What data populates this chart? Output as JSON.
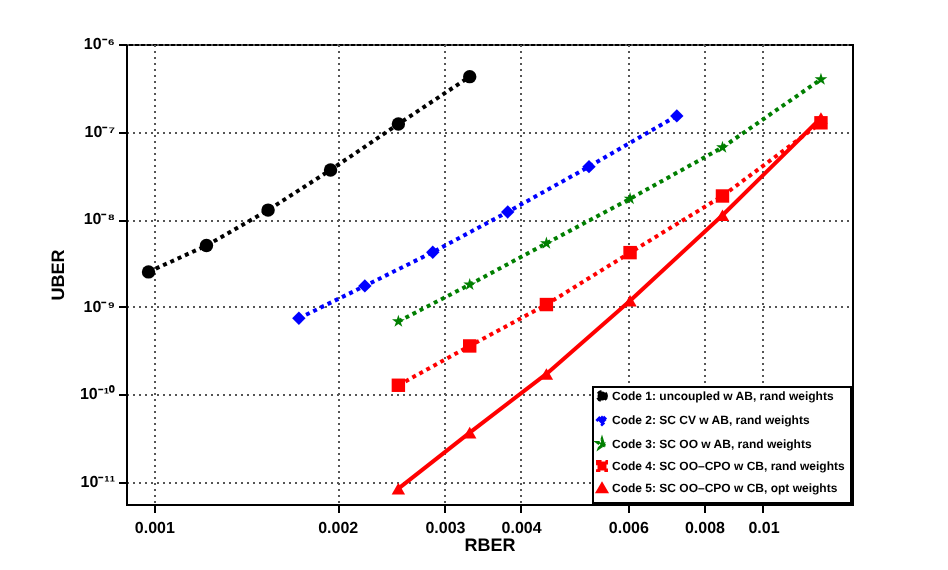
{
  "chart_data": {
    "type": "line",
    "xlabel": "RBER",
    "ylabel": "UBER",
    "log": "xy",
    "grid": true,
    "legend": "bottom right",
    "xlim": [
      0.0009,
      0.014
    ],
    "xticks": [
      0.001,
      0.002,
      0.003,
      0.004,
      0.006,
      0.008,
      0.01
    ],
    "ylim": [
      5.6e-12,
      1e-06
    ],
    "yticks": [
      {
        "value": 1e-11,
        "label": "10⁻¹¹"
      },
      {
        "value": 1e-10,
        "label": "10⁻¹⁰"
      },
      {
        "value": 1e-09,
        "label": "10⁻⁹"
      },
      {
        "value": 1e-08,
        "label": "10⁻⁸"
      },
      {
        "value": 1e-07,
        "label": "10⁻⁷"
      },
      {
        "value": 1e-06,
        "label": "10⁻⁶"
      }
    ],
    "series": [
      {
        "name": "Code 1: uncoupled w AB, rand weights",
        "color": "#000000",
        "marker": "circle",
        "line_style": "dotted",
        "x": [
          0.00098,
          0.00122,
          0.00154,
          0.00195,
          0.00252,
          0.0033
        ],
        "values": [
          2.5e-09,
          5e-09,
          1.27e-08,
          3.65e-08,
          1.22e-07,
          4.24e-07
        ]
      },
      {
        "name": "Code 2: SC CV w AB, rand weights",
        "color": "#0000ff",
        "marker": "diamond",
        "line_style": "dotted",
        "x": [
          0.00173,
          0.00222,
          0.00287,
          0.00381,
          0.00518,
          0.00722
        ],
        "values": [
          7.4e-10,
          1.73e-09,
          4.2e-09,
          1.21e-08,
          3.98e-08,
          1.51e-07
        ]
      },
      {
        "name": "Code 3: SC OO w AB, rand weights",
        "color": "#007f00",
        "marker": "star",
        "line_style": "dotted",
        "x": [
          0.00252,
          0.0033,
          0.00441,
          0.00605,
          0.00858,
          0.01245
        ],
        "values": [
          6.8e-10,
          1.79e-09,
          5.3e-09,
          1.71e-08,
          6.6e-08,
          3.95e-07
        ]
      },
      {
        "name": "Code 4: SC OO–CPO w CB, rand weights",
        "color": "#ff0000",
        "marker": "square",
        "line_style": "dotted",
        "x": [
          0.00252,
          0.0033,
          0.00441,
          0.00605,
          0.00858,
          0.01245
        ],
        "values": [
          1.27e-10,
          3.57e-10,
          1.06e-09,
          4.15e-09,
          1.84e-08,
          1.26e-07
        ]
      },
      {
        "name": "Code 5: SC OO–CPO w CB, opt weights",
        "color": "#ff0000",
        "marker": "triangle",
        "line_style": "solid",
        "x": [
          0.00252,
          0.0033,
          0.00441,
          0.00605,
          0.00858,
          0.01245
        ],
        "values": [
          8.4e-12,
          3.66e-11,
          1.71e-10,
          1.17e-09,
          1.11e-08,
          1.43e-07
        ]
      }
    ]
  }
}
